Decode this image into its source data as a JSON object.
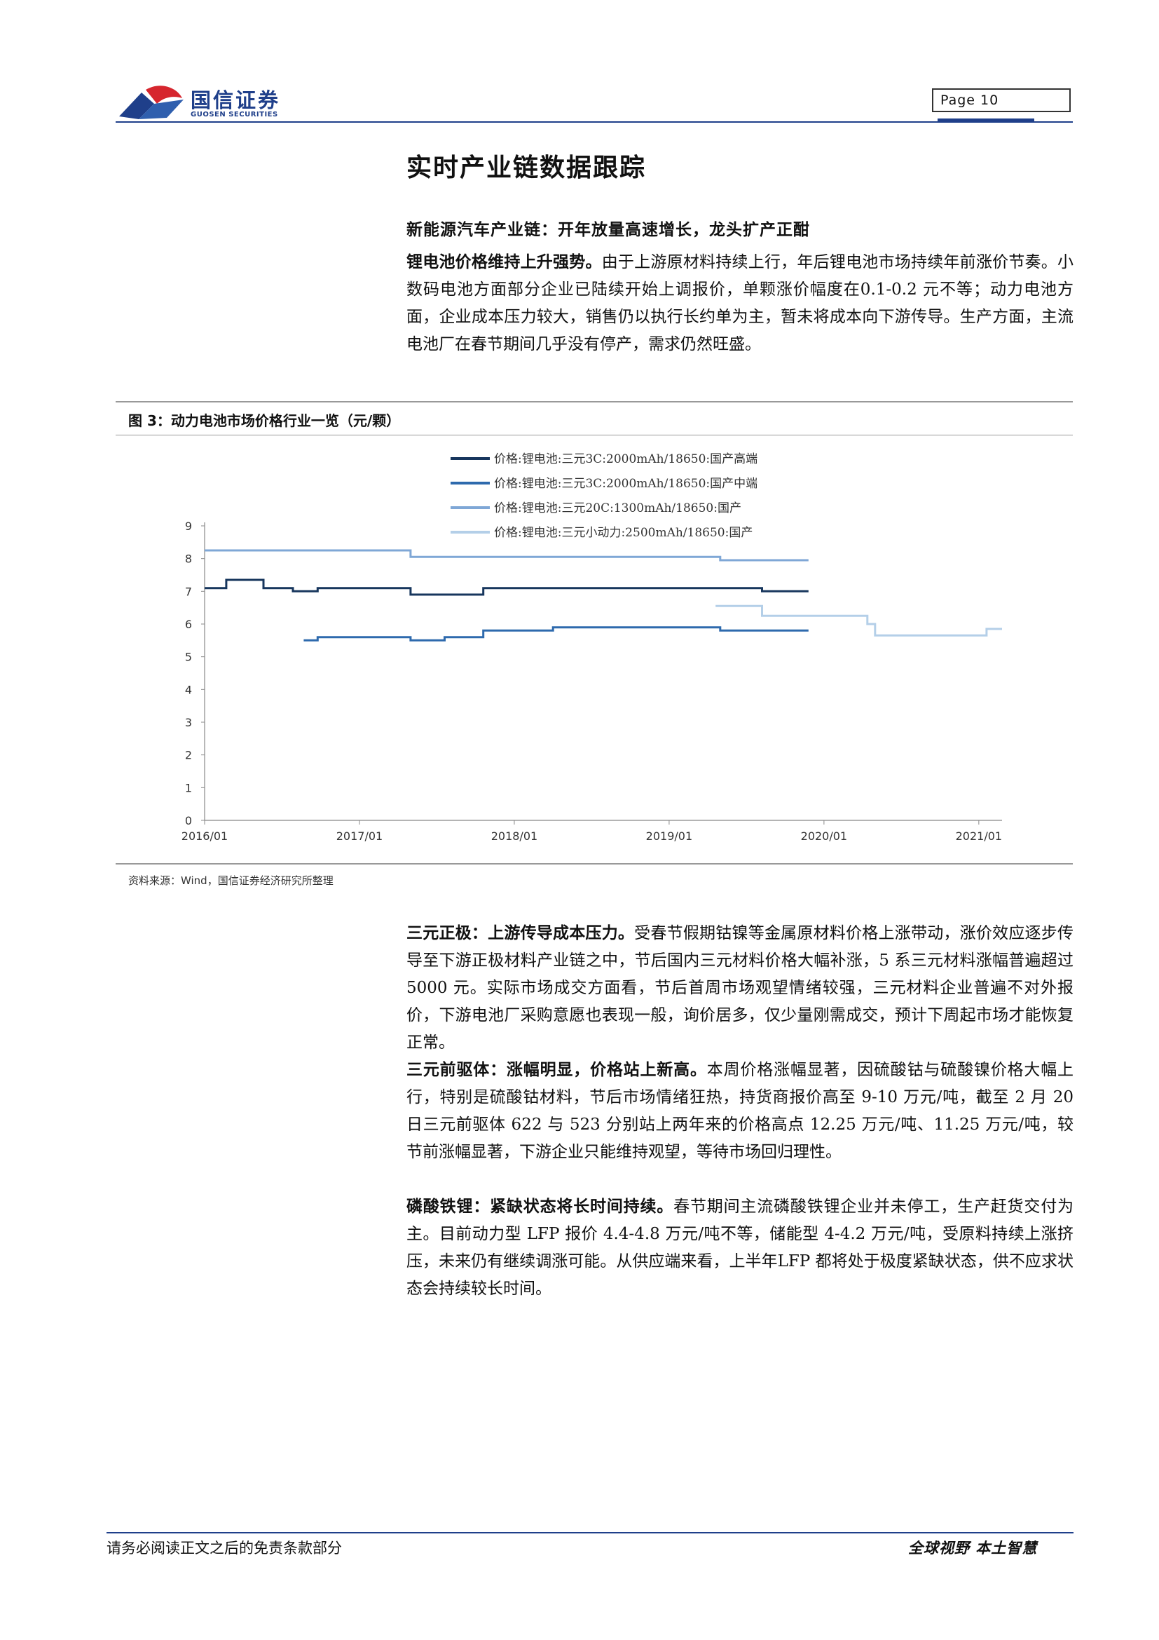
{
  "header": {
    "logo_cn": "国信证券",
    "logo_en": "GUOSEN SECURITIES",
    "page_label": "Page  10"
  },
  "section_title": "实时产业链数据跟踪",
  "subhead": "新能源汽车产业链：开年放量高速增长，龙头扩产正酣",
  "paragraphs": {
    "p1_lead": "锂电池价格维持上升强势。",
    "p1_body": "由于上游原材料持续上行，年后锂电池市场持续年前涨价节奏。小数码电池方面部分企业已陆续开始上调报价，单颗涨价幅度在0.1-0.2 元不等；动力电池方面，企业成本压力较大，销售仍以执行长约单为主，暂未将成本向下游传导。生产方面，主流电池厂在春节期间几乎没有停产，需求仍然旺盛。",
    "p2_lead": "三元正极：上游传导成本压力。",
    "p2_body": "受春节假期钴镍等金属原材料价格上涨带动，涨价效应逐步传导至下游正极材料产业链之中，节后国内三元材料价格大幅补涨，5 系三元材料涨幅普遍超过5000 元。实际市场成交方面看，节后首周市场观望情绪较强，三元材料企业普遍不对外报价，下游电池厂采购意愿也表现一般，询价居多，仅少量刚需成交，预计下周起市场才能恢复正常。",
    "p3_lead": "三元前驱体：涨幅明显，价格站上新高。",
    "p3_body": "本周价格涨幅显著，因硫酸钴与硫酸镍价格大幅上行，特别是硫酸钴材料，节后市场情绪狂热，持货商报价高至 9-10 万元/吨，截至 2 月 20 日三元前驱体 622 与 523 分别站上两年来的价格高点 12.25 万元/吨、11.25 万元/吨，较节前涨幅显著，下游企业只能维持观望，等待市场回归理性。",
    "p4_lead": "磷酸铁锂：紧缺状态将长时间持续。",
    "p4_body": "春节期间主流磷酸铁锂企业并未停工，生产赶货交付为主。目前动力型 LFP 报价 4.4-4.8 万元/吨不等，储能型 4-4.2 万元/吨，受原料持续上涨挤压，未来仍有继续调涨可能。从供应端来看，上半年LFP 都将处于极度紧缺状态，供不应求状态会持续较长时间。"
  },
  "figure": {
    "title": "图 3：动力电池市场价格行业一览（元/颗）",
    "source": "资料来源：Wind，国信证券经济研究所整理"
  },
  "chart_data": {
    "type": "line",
    "title": "",
    "xlabel": "",
    "ylabel": "",
    "ylim": [
      0,
      9
    ],
    "yticks": [
      "0",
      "1",
      "2",
      "3",
      "4",
      "5",
      "6",
      "7",
      "8",
      "9"
    ],
    "x_range": [
      2016.0,
      2021.15
    ],
    "xticks": [
      {
        "label": "2016/01",
        "x": 2016.0
      },
      {
        "label": "2017/01",
        "x": 2017.0
      },
      {
        "label": "2018/01",
        "x": 2018.0
      },
      {
        "label": "2019/01",
        "x": 2019.0
      },
      {
        "label": "2020/01",
        "x": 2020.0
      },
      {
        "label": "2021/01",
        "x": 2021.0
      }
    ],
    "legend_position": "top",
    "series": [
      {
        "name": "价格:锂电池:三元3C:2000mAh/18650:国产高端",
        "color": "#17365d",
        "step": true,
        "points": [
          [
            2016.0,
            7.1
          ],
          [
            2016.14,
            7.1
          ],
          [
            2016.14,
            7.35
          ],
          [
            2016.38,
            7.35
          ],
          [
            2016.38,
            7.1
          ],
          [
            2016.57,
            7.1
          ],
          [
            2016.57,
            7.0
          ],
          [
            2016.73,
            7.0
          ],
          [
            2016.73,
            7.1
          ],
          [
            2017.33,
            7.1
          ],
          [
            2017.33,
            6.9
          ],
          [
            2017.8,
            6.9
          ],
          [
            2017.8,
            7.1
          ],
          [
            2019.6,
            7.1
          ],
          [
            2019.6,
            7.0
          ],
          [
            2019.9,
            7.0
          ]
        ]
      },
      {
        "name": "价格:锂电池:三元3C:2000mAh/18650:国产中端",
        "color": "#2e6aad",
        "step": true,
        "points": [
          [
            2016.64,
            5.5
          ],
          [
            2016.73,
            5.5
          ],
          [
            2016.73,
            5.6
          ],
          [
            2017.33,
            5.6
          ],
          [
            2017.33,
            5.5
          ],
          [
            2017.55,
            5.5
          ],
          [
            2017.55,
            5.6
          ],
          [
            2017.8,
            5.6
          ],
          [
            2017.8,
            5.8
          ],
          [
            2018.25,
            5.8
          ],
          [
            2018.25,
            5.9
          ],
          [
            2019.33,
            5.9
          ],
          [
            2019.33,
            5.8
          ],
          [
            2019.6,
            5.8
          ],
          [
            2019.6,
            5.8
          ],
          [
            2019.9,
            5.8
          ]
        ]
      },
      {
        "name": "价格:锂电池:三元20C:1300mAh/18650:国产",
        "color": "#7fa7d6",
        "step": true,
        "points": [
          [
            2016.0,
            8.25
          ],
          [
            2017.33,
            8.25
          ],
          [
            2017.33,
            8.05
          ],
          [
            2019.33,
            8.05
          ],
          [
            2019.33,
            7.95
          ],
          [
            2019.9,
            7.95
          ]
        ]
      },
      {
        "name": "价格:锂电池:三元小动力:2500mAh/18650:国产",
        "color": "#b4cfe8",
        "step": true,
        "points": [
          [
            2019.3,
            6.55
          ],
          [
            2019.6,
            6.55
          ],
          [
            2019.6,
            6.25
          ],
          [
            2020.28,
            6.25
          ],
          [
            2020.28,
            6.0
          ],
          [
            2020.33,
            6.0
          ],
          [
            2020.33,
            5.65
          ],
          [
            2021.05,
            5.65
          ],
          [
            2021.05,
            5.85
          ],
          [
            2021.15,
            5.85
          ]
        ]
      }
    ]
  },
  "footer": {
    "left": "请务必阅读正文之后的免责条款部分",
    "right": "全球视野   本土智慧"
  }
}
